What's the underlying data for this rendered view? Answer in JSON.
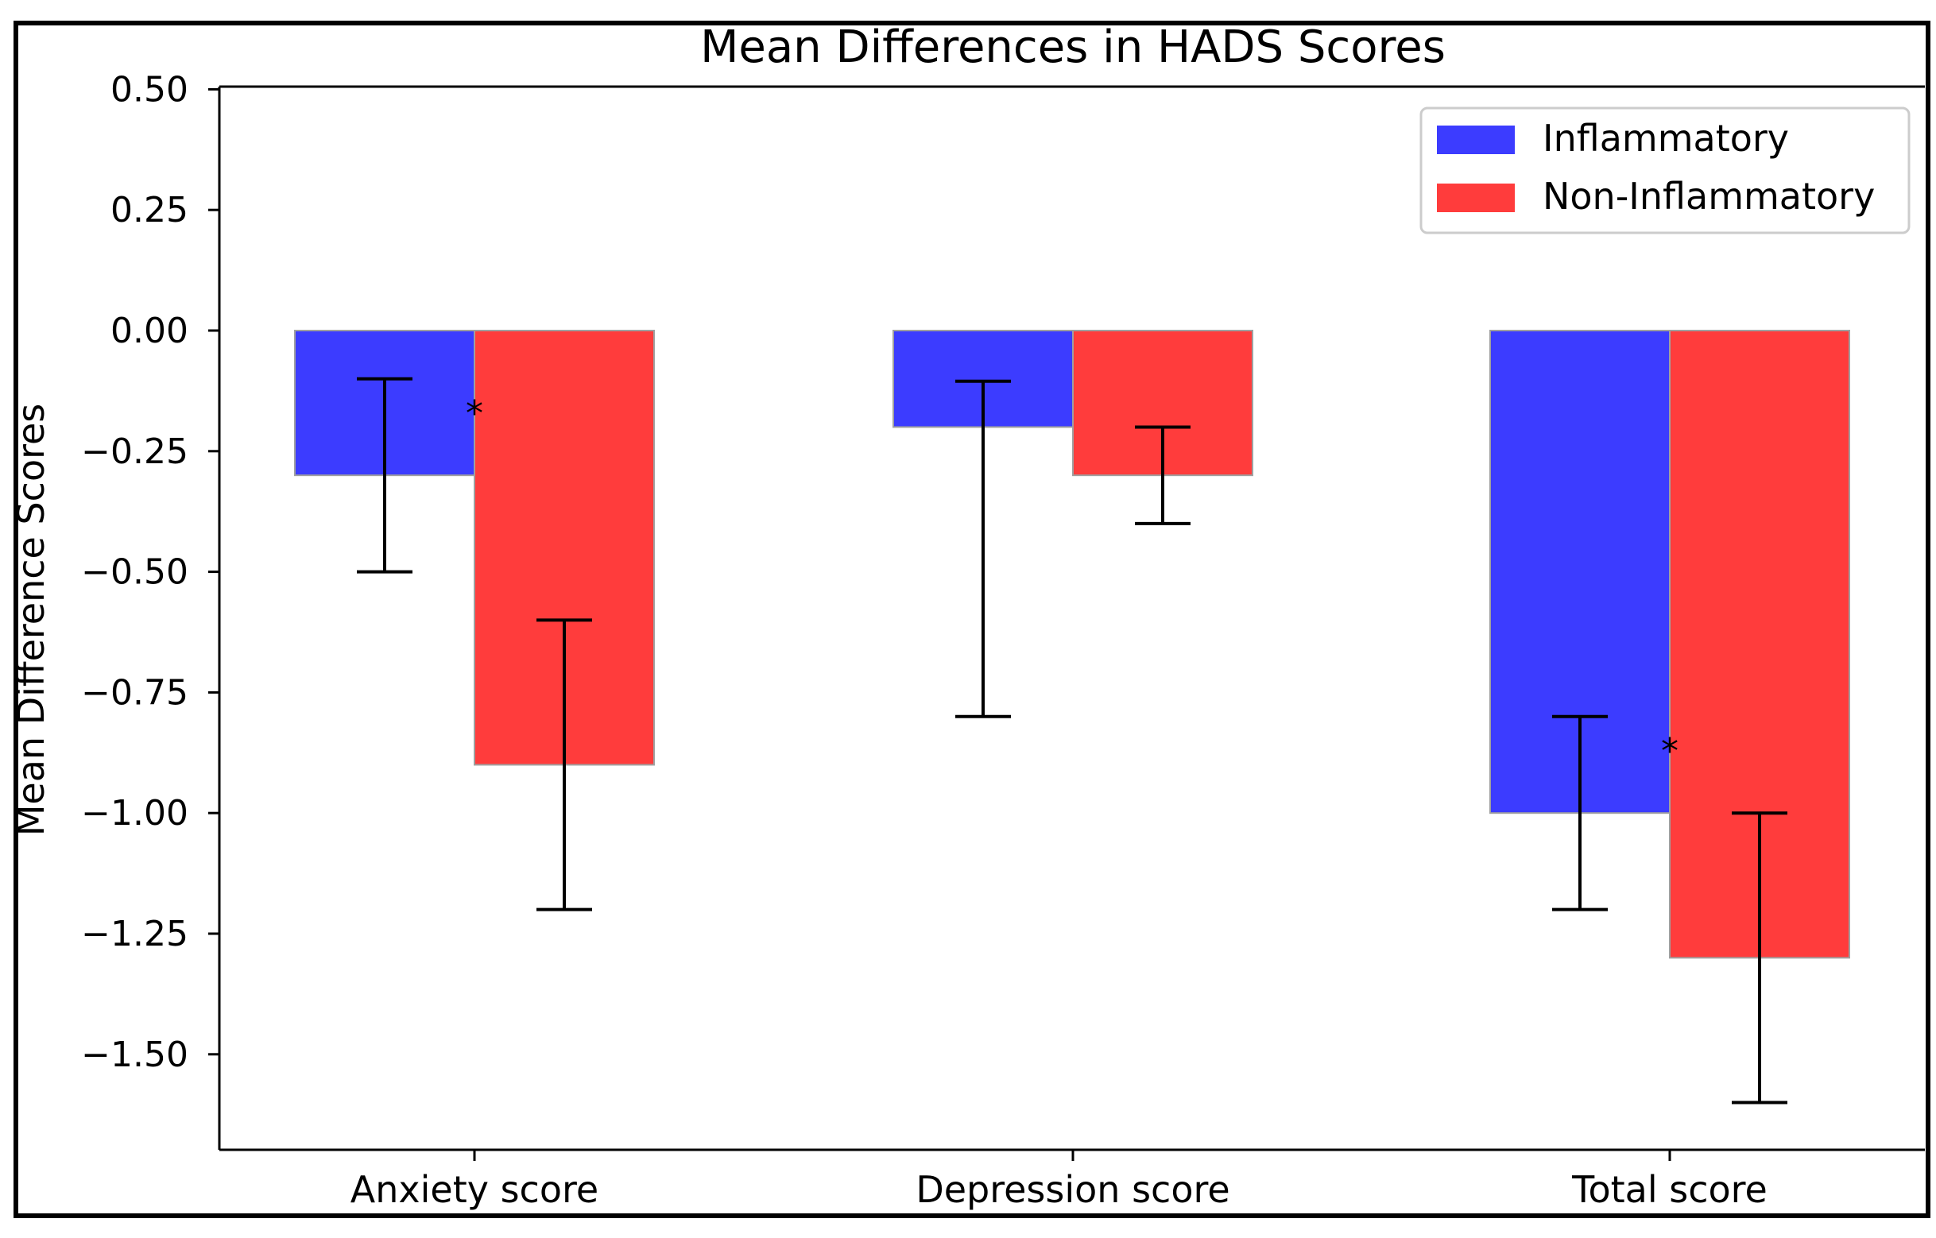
{
  "chart_data": {
    "type": "bar",
    "title": "Mean Differences in HADS Scores",
    "xlabel": "",
    "ylabel": "Mean Difference Scores",
    "categories": [
      "Anxiety score",
      "Depression score",
      "Total score"
    ],
    "series": [
      {
        "name": "Inflammatory",
        "color": "#3c3cff",
        "values": [
          -0.3,
          -0.2,
          -1.0
        ],
        "error_low": [
          -0.5,
          -0.8,
          -1.2
        ],
        "error_high": [
          -0.1,
          -0.105,
          -0.8
        ]
      },
      {
        "name": "Non-Inflammatory",
        "color": "#ff3c3c",
        "values": [
          -0.9,
          -0.3,
          -1.3
        ],
        "error_low": [
          -1.2,
          -0.4,
          -1.6
        ],
        "error_high": [
          -0.6,
          -0.2,
          -1.0
        ]
      }
    ],
    "significance": [
      {
        "category": "Anxiety score",
        "label": "*",
        "value": -0.16
      },
      {
        "category": "Total score",
        "label": "*",
        "value": -0.86
      }
    ],
    "ylim": [
      -1.7,
      0.5
    ],
    "yticks": [
      0.5,
      0.25,
      0.0,
      -0.25,
      -0.5,
      -0.75,
      -1.0,
      -1.25,
      -1.5
    ],
    "ytick_labels": [
      "0.50",
      "0.25",
      "0.00",
      "−0.25",
      "−0.50",
      "−0.75",
      "−1.00",
      "−1.25",
      "−1.50"
    ],
    "legend_position": "top-right",
    "grid": false
  }
}
